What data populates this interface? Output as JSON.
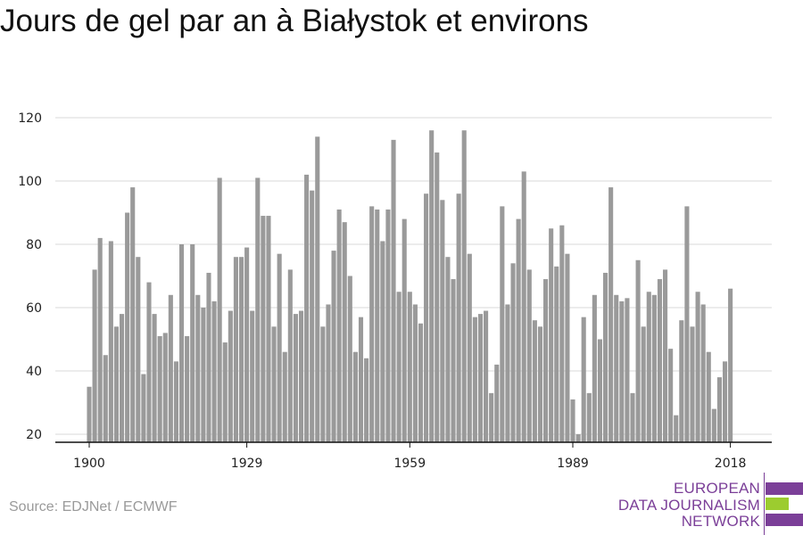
{
  "title": "Jours de gel par an à Białystok et environs",
  "source": "Source: EDJNet / ECMWF",
  "logo": {
    "line1": "EUROPEAN",
    "line2": "DATA JOURNALISM",
    "line3": "NETWORK"
  },
  "colors": {
    "bar": "#9a9a9a",
    "grid": "#d9d9d9",
    "axis": "#111111",
    "logo_purple": "#7b3f98",
    "logo_green": "#9ccc2f"
  },
  "chart_data": {
    "type": "bar",
    "title": "Jours de gel par an à Białystok et environs",
    "xlabel": "",
    "ylabel": "",
    "ylim": [
      18,
      122
    ],
    "yticks": [
      20,
      40,
      60,
      80,
      100,
      120
    ],
    "xtick_labels": [
      "1900",
      "1929",
      "1959",
      "1989",
      "2018"
    ],
    "grid": true,
    "categories": [
      1900,
      1901,
      1902,
      1903,
      1904,
      1905,
      1906,
      1907,
      1908,
      1909,
      1910,
      1911,
      1912,
      1913,
      1914,
      1915,
      1916,
      1917,
      1918,
      1919,
      1920,
      1921,
      1922,
      1923,
      1924,
      1925,
      1926,
      1927,
      1928,
      1929,
      1930,
      1931,
      1932,
      1933,
      1934,
      1935,
      1936,
      1937,
      1938,
      1939,
      1940,
      1941,
      1942,
      1943,
      1944,
      1945,
      1946,
      1947,
      1948,
      1949,
      1950,
      1951,
      1952,
      1953,
      1954,
      1955,
      1956,
      1957,
      1958,
      1959,
      1960,
      1961,
      1962,
      1963,
      1964,
      1965,
      1966,
      1967,
      1968,
      1969,
      1970,
      1971,
      1972,
      1973,
      1974,
      1975,
      1976,
      1977,
      1978,
      1979,
      1980,
      1981,
      1982,
      1983,
      1984,
      1985,
      1986,
      1987,
      1988,
      1989,
      1990,
      1991,
      1992,
      1993,
      1994,
      1995,
      1996,
      1997,
      1998,
      1999,
      2000,
      2001,
      2002,
      2003,
      2004,
      2005,
      2006,
      2007,
      2008,
      2009,
      2010,
      2011,
      2012,
      2013,
      2014,
      2015,
      2016,
      2017,
      2018
    ],
    "values": [
      35,
      72,
      82,
      45,
      81,
      54,
      58,
      90,
      98,
      76,
      39,
      68,
      58,
      51,
      52,
      64,
      43,
      80,
      51,
      80,
      64,
      60,
      71,
      62,
      101,
      49,
      59,
      76,
      76,
      79,
      59,
      101,
      89,
      89,
      54,
      77,
      46,
      72,
      58,
      59,
      102,
      97,
      114,
      54,
      61,
      78,
      91,
      87,
      70,
      46,
      57,
      44,
      92,
      91,
      81,
      91,
      113,
      65,
      88,
      65,
      61,
      55,
      96,
      116,
      109,
      94,
      76,
      69,
      96,
      116,
      77,
      57,
      58,
      59,
      33,
      42,
      92,
      61,
      74,
      88,
      103,
      72,
      56,
      54,
      69,
      85,
      73,
      86,
      77,
      31,
      20,
      57,
      33,
      64,
      50,
      71,
      98,
      64,
      62,
      63,
      33,
      75,
      54,
      65,
      64,
      69,
      72,
      47,
      26,
      56,
      92,
      54,
      65,
      61,
      46,
      28,
      38,
      43,
      66
    ]
  }
}
